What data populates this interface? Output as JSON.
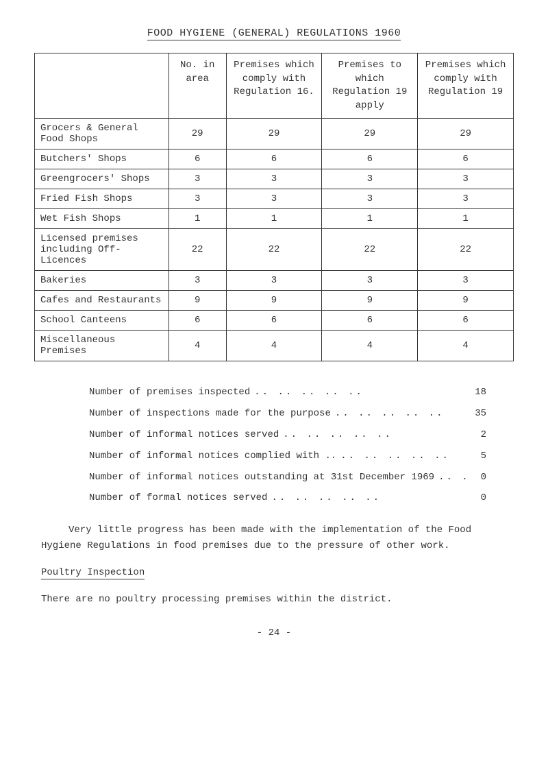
{
  "title": "FOOD HYGIENE (GENERAL) REGULATIONS 1960",
  "table": {
    "headers": [
      "",
      "No. in area",
      "Premises which comply with Regulation 16.",
      "Premises to which Regulation 19 apply",
      "Premises which comply with Regulation 19"
    ],
    "rows": [
      {
        "label": "Grocers & General Food Shops",
        "c1": "29",
        "c2": "29",
        "c3": "29",
        "c4": "29"
      },
      {
        "label": "Butchers' Shops",
        "c1": "6",
        "c2": "6",
        "c3": "6",
        "c4": "6"
      },
      {
        "label": "Greengrocers' Shops",
        "c1": "3",
        "c2": "3",
        "c3": "3",
        "c4": "3"
      },
      {
        "label": "Fried Fish Shops",
        "c1": "3",
        "c2": "3",
        "c3": "3",
        "c4": "3"
      },
      {
        "label": "Wet Fish Shops",
        "c1": "1",
        "c2": "1",
        "c3": "1",
        "c4": "1"
      },
      {
        "label": "Licensed premises including Off-Licences",
        "c1": "22",
        "c2": "22",
        "c3": "22",
        "c4": "22"
      },
      {
        "label": "Bakeries",
        "c1": "3",
        "c2": "3",
        "c3": "3",
        "c4": "3"
      },
      {
        "label": "Cafes and Restaurants",
        "c1": "9",
        "c2": "9",
        "c3": "9",
        "c4": "9"
      },
      {
        "label": "School Canteens",
        "c1": "6",
        "c2": "6",
        "c3": "6",
        "c4": "6"
      },
      {
        "label": "Miscellaneous Premises",
        "c1": "4",
        "c2": "4",
        "c3": "4",
        "c4": "4"
      }
    ]
  },
  "stats": [
    {
      "label": "Number of premises inspected",
      "value": "18"
    },
    {
      "label": "Number of inspections made for the purpose",
      "value": "35"
    },
    {
      "label": "Number of informal notices served",
      "value": "2"
    },
    {
      "label": "Number of informal notices complied with ..",
      "value": "5"
    },
    {
      "label": "Number of informal notices outstanding at 31st December 1969",
      "value": "0"
    },
    {
      "label": "Number of formal notices served",
      "value": "0"
    }
  ],
  "paragraph": "Very little progress has been made with the implementation of the Food Hygiene Regulations in food premises due to the pressure of other work.",
  "subheading": "Poultry Inspection",
  "final_text": "There are no poultry processing premises within the district.",
  "page_number": "- 24 -"
}
